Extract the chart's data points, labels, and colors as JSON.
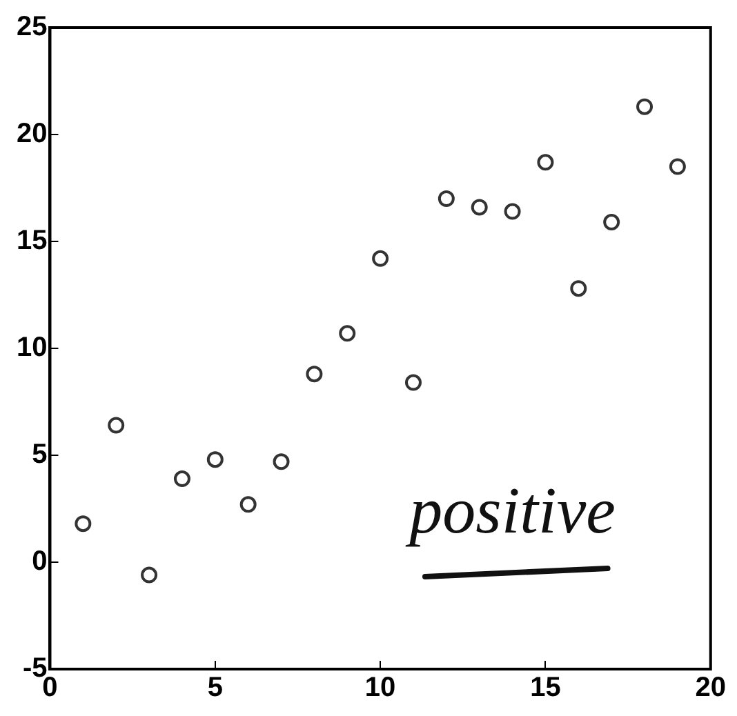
{
  "chart_data": {
    "type": "scatter",
    "x": [
      1,
      2,
      3,
      4,
      5,
      6,
      7,
      8,
      9,
      10,
      11,
      12,
      13,
      14,
      15,
      16,
      17,
      18,
      19
    ],
    "series": [
      {
        "color": "#333333",
        "values": [
          1.8,
          6.4,
          -0.6,
          3.9,
          4.8,
          2.7,
          4.7,
          8.8,
          10.7,
          14.2,
          8.4,
          17.0,
          16.6,
          16.4,
          18.7,
          12.8,
          15.9,
          21.3,
          18.5
        ]
      }
    ],
    "xlim": [
      0,
      20
    ],
    "xticks": [
      0,
      5,
      10,
      15,
      20
    ],
    "ylim": [
      -5,
      25
    ],
    "yticks": [
      -5,
      0,
      5,
      10,
      15,
      20,
      25
    ],
    "marker": "circle",
    "grid": false,
    "legend": false,
    "annotations": [
      "positive"
    ]
  }
}
